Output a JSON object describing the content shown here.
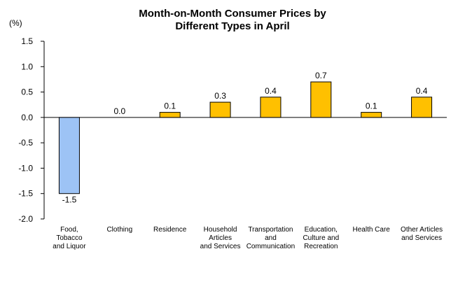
{
  "chart_data": {
    "type": "bar",
    "title_lines": [
      "Month-on-Month Consumer Prices by",
      "Different Types in April"
    ],
    "unit": "(%)",
    "categories": [
      [
        "Food,",
        "Tobacco",
        "and Liquor"
      ],
      [
        "Clothing"
      ],
      [
        "Residence"
      ],
      [
        "Household",
        "Articles",
        "and Services"
      ],
      [
        "Transportation",
        "and",
        "Communication"
      ],
      [
        "Education,",
        "Culture and",
        "Recreation"
      ],
      [
        "Health Care"
      ],
      [
        "Other Articles",
        "and Services"
      ]
    ],
    "values": [
      -1.5,
      0.0,
      0.1,
      0.3,
      0.4,
      0.7,
      0.1,
      0.4
    ],
    "value_labels": [
      "-1.5",
      "0.0",
      "0.1",
      "0.3",
      "0.4",
      "0.7",
      "0.1",
      "0.4"
    ],
    "ylim": [
      -2.0,
      1.5
    ],
    "yticks": [
      1.5,
      1.0,
      0.5,
      0.0,
      -0.5,
      -1.0,
      -1.5,
      -2.0
    ],
    "ytick_labels": [
      "1.5",
      "1.0",
      "0.5",
      "0.0",
      "-0.5",
      "-1.0",
      "-1.5",
      "-2.0"
    ],
    "colors": {
      "positive": "#FFC000",
      "negative": "#9DC3F5",
      "bar_outline": "#000000",
      "axis": "#000000"
    },
    "grid": false,
    "legend": "none"
  }
}
